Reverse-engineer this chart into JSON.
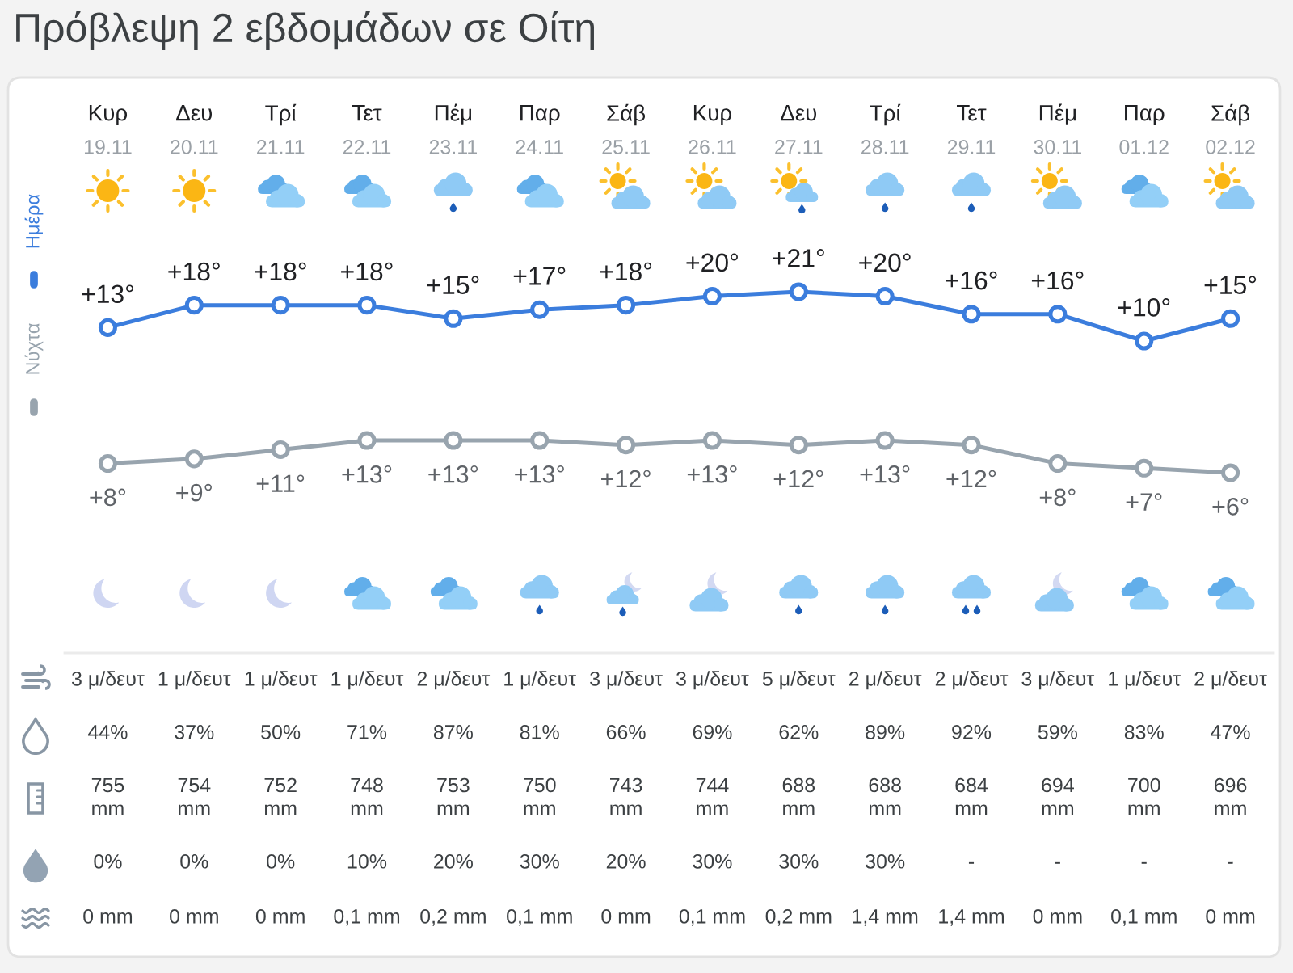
{
  "chart_data": [
    {
      "type": "line",
      "title": "Πρόβλεψη 2 εβδομάδων σε Οίτη",
      "categories": [
        "Κυρ\n19.11",
        "Δευ\n20.11",
        "Τρί\n21.11",
        "Τετ\n22.11",
        "Πέμ\n23.11",
        "Παρ\n24.11",
        "Σάβ\n25.11",
        "Κυρ\n26.11",
        "Δευ\n27.11",
        "Τρί\n28.11",
        "Τετ\n29.11",
        "Πέμ\n30.11",
        "Παρ\n01.12",
        "Σάβ\n02.12"
      ],
      "series": [
        {
          "name": "Ημέρα",
          "color": "#3b7ddd",
          "values": [
            13,
            18,
            18,
            18,
            15,
            17,
            18,
            20,
            21,
            20,
            16,
            16,
            10,
            15
          ],
          "value_labels": [
            "+13°",
            "+18°",
            "+18°",
            "+18°",
            "+15°",
            "+17°",
            "+18°",
            "+20°",
            "+21°",
            "+20°",
            "+16°",
            "+16°",
            "+10°",
            "+15°"
          ]
        }
      ],
      "marker": "circle",
      "line_style": "solid",
      "legend": "left",
      "tick_labels": "x"
    },
    {
      "type": "line",
      "categories": [
        null,
        null,
        null,
        null,
        null,
        null,
        null,
        null,
        null,
        null,
        null,
        null,
        null,
        null
      ],
      "series": [
        {
          "name": "Νύχτα",
          "color": "#98a4ae",
          "values": [
            8,
            9,
            11,
            13,
            13,
            13,
            12,
            13,
            12,
            13,
            12,
            8,
            7,
            6
          ],
          "value_labels": [
            "+8°",
            "+9°",
            "+11°",
            "+13°",
            "+13°",
            "+13°",
            "+12°",
            "+13°",
            "+12°",
            "+13°",
            "+12°",
            "+8°",
            "+7°",
            "+6°"
          ]
        }
      ],
      "marker": "circle",
      "line_style": "solid",
      "legend": "left",
      "tick_labels": false
    },
    {
      "type": "other",
      "annotations": [
        "3 μ/δευτ",
        "1 μ/δευτ",
        "1 μ/δευτ",
        "1 μ/δευτ",
        "2 μ/δευτ",
        "1 μ/δευτ",
        "3 μ/δευτ",
        "3 μ/δευτ",
        "5 μ/δευτ",
        "2 μ/δευτ",
        "2 μ/δευτ",
        "3 μ/δευτ",
        "1 μ/δευτ",
        "2 μ/δευτ"
      ]
    },
    {
      "type": "other",
      "annotations": [
        "44%",
        "37%",
        "50%",
        "71%",
        "87%",
        "81%",
        "66%",
        "69%",
        "62%",
        "89%",
        "92%",
        "59%",
        "83%",
        "47%"
      ]
    },
    {
      "type": "other",
      "annotations": [
        "755\nmm",
        "754\nmm",
        "752\nmm",
        "748\nmm",
        "753\nmm",
        "750\nmm",
        "743\nmm",
        "744\nmm",
        "688\nmm",
        "688\nmm",
        "684\nmm",
        "694\nmm",
        "700\nmm",
        "696\nmm"
      ]
    },
    {
      "type": "other",
      "annotations": [
        "0%",
        "0%",
        "0%",
        "10%",
        "20%",
        "30%",
        "20%",
        "30%",
        "30%",
        "30%",
        "-",
        "-",
        "-",
        "-"
      ]
    },
    {
      "type": "other",
      "annotations": [
        "0 mm",
        "0 mm",
        "0 mm",
        "0,1 mm",
        "0,2 mm",
        "0,1 mm",
        "0 mm",
        "0,1 mm",
        "0,2 mm",
        "1,4 mm",
        "1,4 mm",
        "0 mm",
        "0,1 mm",
        "0 mm"
      ]
    }
  ]
}
